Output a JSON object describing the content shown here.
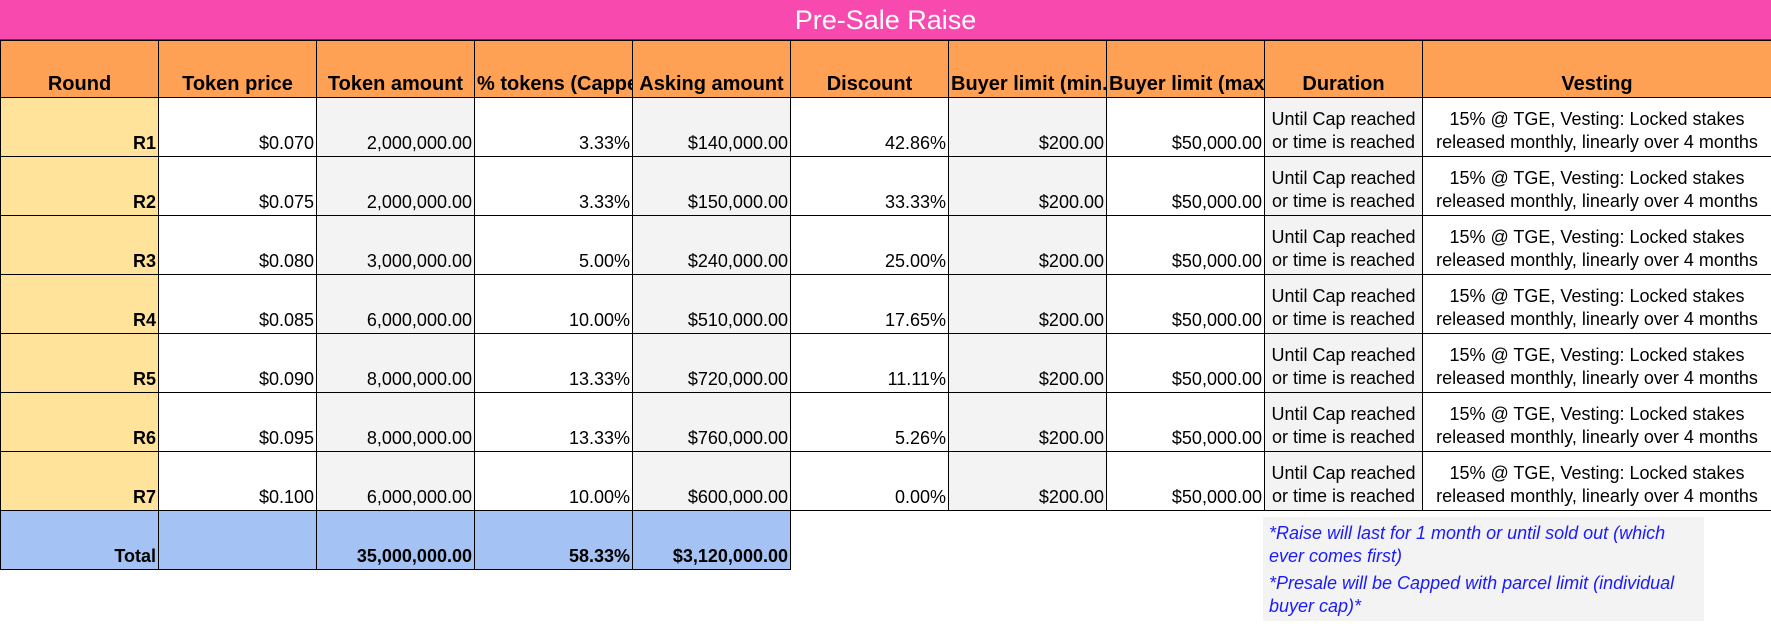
{
  "title": "Pre-Sale Raise",
  "colors": {
    "title_bg": "#f749ae",
    "header_bg": "#ffa154",
    "round_bg": "#ffe39b",
    "total_bg": "#a4c2f4",
    "note_text": "#1a1aff"
  },
  "headers": [
    "Round",
    "Token price",
    "Token amount",
    "% tokens (Capped)",
    "Asking amount",
    "Discount",
    "Buyer limit (min.)",
    "Buyer limit (max.)",
    "Duration",
    "Vesting"
  ],
  "rows": [
    {
      "round": "R1",
      "token_price": "$0.070",
      "token_amount": "2,000,000.00",
      "pct_tokens": "3.33%",
      "asking": "$140,000.00",
      "discount": "42.86%",
      "min": "$200.00",
      "max": "$50,000.00",
      "duration": "Until Cap reached or time is reached",
      "vesting": "15% @ TGE, Vesting: Locked stakes released monthly, linearly over 4 months"
    },
    {
      "round": "R2",
      "token_price": "$0.075",
      "token_amount": "2,000,000.00",
      "pct_tokens": "3.33%",
      "asking": "$150,000.00",
      "discount": "33.33%",
      "min": "$200.00",
      "max": "$50,000.00",
      "duration": "Until Cap reached or time is reached",
      "vesting": "15% @ TGE, Vesting: Locked stakes released monthly, linearly over 4 months"
    },
    {
      "round": "R3",
      "token_price": "$0.080",
      "token_amount": "3,000,000.00",
      "pct_tokens": "5.00%",
      "asking": "$240,000.00",
      "discount": "25.00%",
      "min": "$200.00",
      "max": "$50,000.00",
      "duration": "Until Cap reached or time is reached",
      "vesting": "15% @ TGE, Vesting: Locked stakes released monthly, linearly over 4 months"
    },
    {
      "round": "R4",
      "token_price": "$0.085",
      "token_amount": "6,000,000.00",
      "pct_tokens": "10.00%",
      "asking": "$510,000.00",
      "discount": "17.65%",
      "min": "$200.00",
      "max": "$50,000.00",
      "duration": "Until Cap reached or time is reached",
      "vesting": "15% @ TGE, Vesting: Locked stakes released monthly, linearly over 4 months"
    },
    {
      "round": "R5",
      "token_price": "$0.090",
      "token_amount": "8,000,000.00",
      "pct_tokens": "13.33%",
      "asking": "$720,000.00",
      "discount": "11.11%",
      "min": "$200.00",
      "max": "$50,000.00",
      "duration": "Until Cap reached or time is reached",
      "vesting": "15% @ TGE, Vesting: Locked stakes released monthly, linearly over 4 months"
    },
    {
      "round": "R6",
      "token_price": "$0.095",
      "token_amount": "8,000,000.00",
      "pct_tokens": "13.33%",
      "asking": "$760,000.00",
      "discount": "5.26%",
      "min": "$200.00",
      "max": "$50,000.00",
      "duration": "Until Cap reached or time is reached",
      "vesting": "15% @ TGE, Vesting: Locked stakes released monthly, linearly over 4 months"
    },
    {
      "round": "R7",
      "token_price": "$0.100",
      "token_amount": "6,000,000.00",
      "pct_tokens": "10.00%",
      "asking": "$600,000.00",
      "discount": "0.00%",
      "min": "$200.00",
      "max": "$50,000.00",
      "duration": "Until Cap reached or time is reached",
      "vesting": "15% @ TGE, Vesting: Locked stakes released monthly, linearly over 4 months"
    }
  ],
  "total": {
    "label": "Total",
    "token_price": "",
    "token_amount": "35,000,000.00",
    "pct_tokens": "58.33%",
    "asking": "$3,120,000.00"
  },
  "notes": [
    "*Raise will last for 1 month or until sold out (which ever comes first)",
    "*Presale will be Capped with parcel limit (individual buyer cap)*"
  ]
}
